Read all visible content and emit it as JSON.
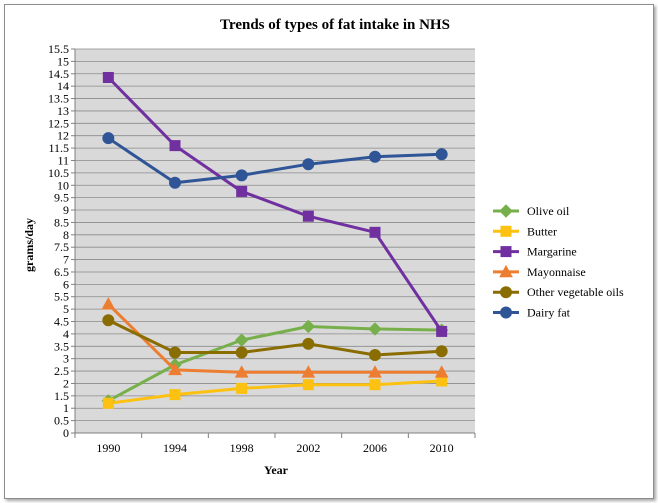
{
  "chart_data": {
    "type": "line",
    "title": "Trends of types of fat intake in NHS",
    "xlabel": "Year",
    "ylabel": "grams/day",
    "x": [
      "1990",
      "1994",
      "1998",
      "2002",
      "2006",
      "2010"
    ],
    "ylim": [
      0,
      15.5
    ],
    "ytick_step": 0.5,
    "yticks": [
      "0",
      "0.5",
      "1",
      "1.5",
      "2",
      "2.5",
      "3",
      "3.5",
      "4",
      "4.5",
      "5",
      "5.5",
      "6",
      "6.5",
      "7",
      "7.5",
      "8",
      "8.5",
      "9",
      "9.5",
      "10",
      "10.5",
      "11",
      "11.5",
      "12",
      "12.5",
      "13",
      "13.5",
      "14",
      "14.5",
      "15",
      "15.5"
    ],
    "grid": true,
    "plot_background": "#d9d9d9",
    "legend_position": "right",
    "series": [
      {
        "name": "Olive oil",
        "values": [
          1.3,
          2.75,
          3.75,
          4.3,
          4.2,
          4.15
        ],
        "color": "#77b04a",
        "marker": "diamond"
      },
      {
        "name": "Butter",
        "values": [
          1.2,
          1.55,
          1.8,
          1.95,
          1.95,
          2.1
        ],
        "color": "#fcc111",
        "marker": "square"
      },
      {
        "name": "Margarine",
        "values": [
          14.35,
          11.6,
          9.75,
          8.75,
          8.1,
          4.1
        ],
        "color": "#7030a0",
        "marker": "square"
      },
      {
        "name": "Mayonnaise",
        "values": [
          5.2,
          2.55,
          2.45,
          2.45,
          2.45,
          2.45
        ],
        "color": "#ed7d31",
        "marker": "triangle"
      },
      {
        "name": "Other vegetable oils",
        "values": [
          4.55,
          3.25,
          3.25,
          3.6,
          3.15,
          3.3
        ],
        "color": "#8a6d00",
        "marker": "circle"
      },
      {
        "name": "Dairy fat",
        "values": [
          11.9,
          10.1,
          10.4,
          10.85,
          11.15,
          11.25
        ],
        "color": "#2f5597",
        "marker": "circle"
      }
    ]
  }
}
